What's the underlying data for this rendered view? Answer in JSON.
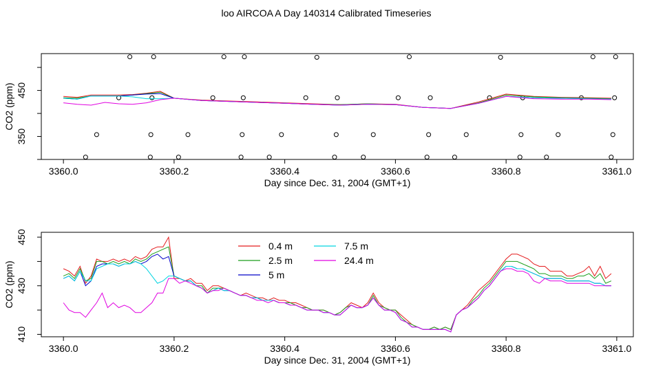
{
  "title": "loo AIRCOA A  Day 140314  Calibrated Timeseries",
  "colors": {
    "0.4 m": "#e41a1c",
    "2.5 m": "#1a9e1a",
    "5 m": "#0000c8",
    "7.5 m": "#00d4e0",
    "24.4 m": "#e000e0"
  },
  "chart_data": [
    {
      "type": "line",
      "xlabel": "Day since Dec. 31, 2004 (GMT+1)",
      "ylabel": "CO2 (ppm)",
      "xlim": [
        3359.96,
        3361.03
      ],
      "ylim": [
        300,
        530
      ],
      "xticks": [
        "3360.0",
        "3360.2",
        "3360.4",
        "3360.6",
        "3360.8",
        "3361.0"
      ],
      "yticks": [
        "350",
        "450"
      ],
      "yticks_all": [
        300,
        350,
        400,
        450,
        500
      ],
      "x": [
        3360.0,
        3360.025,
        3360.05,
        3360.075,
        3360.1,
        3360.125,
        3360.15,
        3360.175,
        3360.2,
        3360.25,
        3360.3,
        3360.35,
        3360.4,
        3360.45,
        3360.5,
        3360.55,
        3360.6,
        3360.65,
        3360.7,
        3360.75,
        3360.8,
        3360.85,
        3360.9,
        3360.95,
        3360.99
      ],
      "series": [
        {
          "name": "0.4 m",
          "values": [
            437,
            435,
            440,
            440,
            440,
            441,
            444,
            448,
            433,
            429,
            427,
            425,
            423,
            421,
            419,
            421,
            420,
            413,
            411,
            425,
            442,
            437,
            435,
            434,
            433
          ]
        },
        {
          "name": "2.5 m",
          "values": [
            434,
            433,
            438,
            438,
            438,
            440,
            443,
            446,
            433,
            428,
            426,
            424,
            422,
            420,
            419,
            421,
            419,
            413,
            411,
            423,
            440,
            436,
            434,
            433,
            432
          ]
        },
        {
          "name": "5 m",
          "values": [
            433,
            431,
            438,
            438,
            438,
            440,
            442,
            443,
            433,
            428,
            426,
            424,
            422,
            420,
            418,
            420,
            419,
            413,
            411,
            422,
            437,
            434,
            433,
            432,
            431
          ]
        },
        {
          "name": "7.5 m",
          "values": [
            433,
            431,
            438,
            438,
            438,
            436,
            432,
            432,
            433,
            428,
            426,
            424,
            422,
            420,
            418,
            420,
            419,
            413,
            411,
            422,
            437,
            434,
            433,
            432,
            431
          ]
        },
        {
          "name": "24.4 m",
          "values": [
            423,
            420,
            418,
            424,
            421,
            420,
            423,
            430,
            433,
            428,
            426,
            424,
            422,
            420,
            418,
            420,
            419,
            413,
            411,
            422,
            437,
            432,
            431,
            431,
            430
          ]
        }
      ],
      "points": {
        "x": [
          3360.04,
          3360.06,
          3360.1,
          3360.12,
          3360.157,
          3360.158,
          3360.16,
          3360.163,
          3360.208,
          3360.225,
          3360.27,
          3360.29,
          3360.321,
          3360.323,
          3360.325,
          3360.327,
          3360.372,
          3360.394,
          3360.438,
          3360.458,
          3360.49,
          3360.493,
          3360.495,
          3360.542,
          3360.56,
          3360.605,
          3360.625,
          3360.657,
          3360.66,
          3360.663,
          3360.707,
          3360.728,
          3360.77,
          3360.79,
          3360.825,
          3360.827,
          3360.83,
          3360.873,
          3360.894,
          3360.936,
          3360.957,
          3360.99,
          3360.993,
          3360.996,
          3360.998
        ],
        "y": [
          305,
          354,
          434,
          523,
          305,
          354,
          434,
          523,
          305,
          354,
          434,
          523,
          305,
          354,
          434,
          523,
          305,
          354,
          434,
          522,
          305,
          354,
          434,
          305,
          354,
          434,
          523,
          305,
          354,
          434,
          305,
          354,
          434,
          522,
          305,
          354,
          434,
          305,
          354,
          434,
          523,
          305,
          354,
          434,
          523
        ]
      }
    },
    {
      "type": "line",
      "xlabel": "Day since Dec. 31, 2004 (GMT+1)",
      "ylabel": "CO2 (ppm)",
      "xlim": [
        3359.96,
        3361.03
      ],
      "ylim": [
        409,
        452
      ],
      "xticks": [
        "3360.0",
        "3360.2",
        "3360.4",
        "3360.6",
        "3360.8",
        "3361.0"
      ],
      "yticks": [
        "410",
        "430",
        "450"
      ],
      "yticks_all": [
        410,
        420,
        430,
        440,
        450
      ],
      "x": [
        3360.0,
        3360.01,
        3360.02,
        3360.03,
        3360.04,
        3360.05,
        3360.06,
        3360.07,
        3360.08,
        3360.09,
        3360.1,
        3360.11,
        3360.12,
        3360.13,
        3360.14,
        3360.15,
        3360.16,
        3360.17,
        3360.18,
        3360.19,
        3360.2,
        3360.21,
        3360.22,
        3360.23,
        3360.24,
        3360.25,
        3360.26,
        3360.27,
        3360.28,
        3360.29,
        3360.3,
        3360.31,
        3360.32,
        3360.33,
        3360.34,
        3360.35,
        3360.36,
        3360.37,
        3360.38,
        3360.39,
        3360.4,
        3360.41,
        3360.42,
        3360.43,
        3360.44,
        3360.45,
        3360.46,
        3360.47,
        3360.48,
        3360.49,
        3360.5,
        3360.51,
        3360.52,
        3360.53,
        3360.54,
        3360.55,
        3360.56,
        3360.57,
        3360.58,
        3360.59,
        3360.6,
        3360.61,
        3360.62,
        3360.63,
        3360.64,
        3360.65,
        3360.66,
        3360.67,
        3360.68,
        3360.69,
        3360.7,
        3360.71,
        3360.72,
        3360.73,
        3360.74,
        3360.75,
        3360.76,
        3360.77,
        3360.78,
        3360.79,
        3360.8,
        3360.81,
        3360.82,
        3360.83,
        3360.84,
        3360.85,
        3360.86,
        3360.87,
        3360.88,
        3360.89,
        3360.9,
        3360.91,
        3360.92,
        3360.93,
        3360.94,
        3360.95,
        3360.96,
        3360.97,
        3360.98,
        3360.99
      ],
      "series": [
        {
          "name": "0.4 m",
          "values": [
            437,
            436,
            434,
            438,
            431,
            434,
            441,
            440,
            440,
            441,
            440,
            441,
            440,
            442,
            441,
            442,
            445,
            446,
            446,
            450,
            433,
            433,
            432,
            433,
            431,
            431,
            428,
            430,
            430,
            429,
            428,
            427,
            426,
            427,
            426,
            425,
            425,
            424,
            425,
            424,
            424,
            423,
            423,
            422,
            421,
            420,
            420,
            420,
            419,
            418,
            419,
            421,
            423,
            422,
            421,
            423,
            427,
            423,
            421,
            420,
            420,
            418,
            416,
            414,
            413,
            412,
            412,
            413,
            412,
            413,
            412,
            418,
            420,
            422,
            425,
            428,
            430,
            432,
            435,
            438,
            441,
            443,
            443,
            442,
            441,
            439,
            438,
            438,
            436,
            436,
            436,
            434,
            434,
            435,
            436,
            438,
            434,
            438,
            433,
            435
          ]
        },
        {
          "name": "2.5 m",
          "values": [
            434,
            435,
            433,
            437,
            432,
            433,
            440,
            440,
            439,
            440,
            439,
            440,
            439,
            441,
            440,
            441,
            443,
            444,
            445,
            446,
            434,
            433,
            432,
            432,
            430,
            430,
            427,
            429,
            429,
            429,
            428,
            427,
            426,
            426,
            425,
            425,
            424,
            424,
            424,
            423,
            423,
            423,
            422,
            421,
            421,
            420,
            420,
            420,
            419,
            418,
            419,
            421,
            422,
            421,
            421,
            422,
            426,
            422,
            421,
            420,
            420,
            417,
            415,
            414,
            413,
            412,
            412,
            413,
            412,
            413,
            412,
            418,
            420,
            421,
            424,
            426,
            429,
            431,
            434,
            437,
            440,
            440,
            440,
            439,
            438,
            437,
            435,
            435,
            434,
            434,
            434,
            433,
            433,
            434,
            434,
            435,
            433,
            435,
            431,
            432
          ]
        },
        {
          "name": "5 m",
          "values": [
            433,
            434,
            432,
            436,
            430,
            432,
            438,
            439,
            439,
            439,
            438,
            439,
            439,
            440,
            439,
            440,
            442,
            443,
            441,
            442,
            434,
            433,
            432,
            432,
            430,
            429,
            427,
            428,
            429,
            428,
            428,
            427,
            426,
            426,
            425,
            425,
            424,
            424,
            424,
            423,
            423,
            422,
            422,
            421,
            420,
            420,
            420,
            419,
            419,
            418,
            418,
            420,
            422,
            421,
            421,
            422,
            425,
            422,
            420,
            420,
            419,
            416,
            415,
            413,
            413,
            412,
            412,
            412,
            412,
            412,
            411,
            418,
            420,
            421,
            423,
            425,
            428,
            430,
            433,
            436,
            438,
            438,
            437,
            437,
            436,
            435,
            434,
            433,
            433,
            433,
            433,
            432,
            432,
            432,
            432,
            432,
            431,
            431,
            430,
            430
          ]
        },
        {
          "name": "7.5 m",
          "values": [
            433,
            434,
            432,
            436,
            432,
            432,
            437,
            438,
            439,
            439,
            438,
            439,
            439,
            440,
            439,
            437,
            434,
            431,
            432,
            434,
            434,
            433,
            432,
            432,
            430,
            429,
            427,
            428,
            429,
            428,
            428,
            427,
            426,
            426,
            425,
            425,
            424,
            424,
            424,
            423,
            423,
            422,
            422,
            421,
            420,
            420,
            420,
            419,
            419,
            418,
            418,
            420,
            422,
            421,
            421,
            422,
            425,
            422,
            420,
            420,
            419,
            416,
            415,
            413,
            413,
            412,
            412,
            412,
            412,
            412,
            411,
            418,
            420,
            421,
            423,
            425,
            428,
            430,
            433,
            436,
            438,
            438,
            437,
            437,
            436,
            435,
            434,
            433,
            433,
            433,
            433,
            432,
            432,
            432,
            432,
            432,
            431,
            431,
            430,
            430
          ]
        },
        {
          "name": "24.4 m",
          "values": [
            423,
            420,
            419,
            419,
            417,
            420,
            423,
            427,
            421,
            423,
            421,
            422,
            421,
            419,
            419,
            421,
            423,
            427,
            427,
            433,
            433,
            431,
            432,
            431,
            430,
            429,
            427,
            428,
            428,
            429,
            428,
            427,
            426,
            426,
            425,
            424,
            424,
            423,
            424,
            423,
            423,
            422,
            422,
            421,
            420,
            420,
            420,
            419,
            419,
            418,
            418,
            420,
            422,
            421,
            421,
            422,
            425,
            422,
            420,
            420,
            419,
            416,
            415,
            413,
            413,
            412,
            412,
            412,
            412,
            412,
            411,
            418,
            420,
            421,
            423,
            425,
            428,
            430,
            433,
            436,
            437,
            437,
            436,
            436,
            435,
            432,
            431,
            433,
            432,
            432,
            432,
            431,
            431,
            431,
            431,
            431,
            430,
            430,
            430,
            430
          ]
        }
      ],
      "legend": [
        {
          "name": "0.4 m",
          "col": 0,
          "row": 0
        },
        {
          "name": "2.5 m",
          "col": 0,
          "row": 1
        },
        {
          "name": "5 m",
          "col": 0,
          "row": 2
        },
        {
          "name": "7.5 m",
          "col": 1,
          "row": 0
        },
        {
          "name": "24.4 m",
          "col": 1,
          "row": 1
        }
      ]
    }
  ]
}
